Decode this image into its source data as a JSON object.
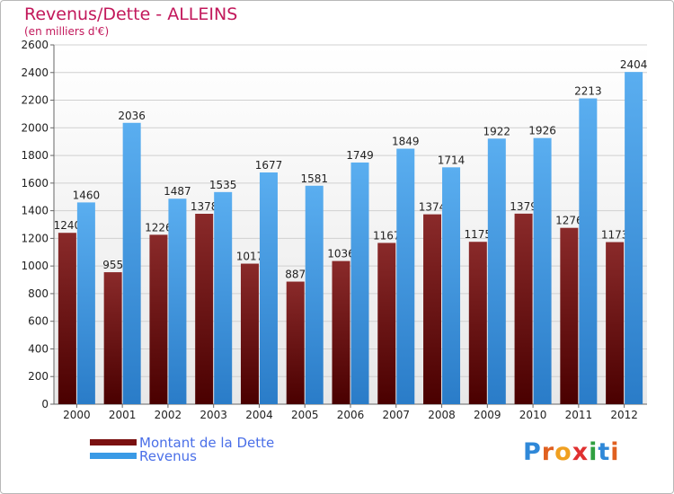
{
  "chart_data": {
    "type": "bar",
    "title": "Revenus/Dette - ALLEINS",
    "subtitle": "(en milliers d'€)",
    "categories": [
      "2000",
      "2001",
      "2002",
      "2003",
      "2004",
      "2005",
      "2006",
      "2007",
      "2008",
      "2009",
      "2010",
      "2011",
      "2012"
    ],
    "series": [
      {
        "name": "Montant de la Dette",
        "color": "#7a1010",
        "values": [
          1240,
          955,
          1226,
          1378,
          1017,
          887,
          1036,
          1167,
          1374,
          1175,
          1379,
          1276,
          1173
        ],
        "labels": [
          "1240",
          "955",
          "1226",
          "1378",
          "1017",
          "887",
          "1036",
          "1167",
          "1374",
          "1175",
          "1379",
          "1276",
          "1173"
        ]
      },
      {
        "name": "Revenus",
        "color": "#3a9ae6",
        "values": [
          1460,
          2036,
          1487,
          1535,
          1677,
          1581,
          1749,
          1849,
          1714,
          1922,
          1926,
          2213,
          2404
        ],
        "labels": [
          "1460",
          "2036",
          "1487",
          "1535",
          "1677",
          "1581",
          "1749",
          "1849",
          "1714",
          "1922",
          "1926",
          "2213",
          "2404"
        ]
      }
    ],
    "yticks": [
      0,
      200,
      400,
      600,
      800,
      1000,
      1200,
      1400,
      1600,
      1800,
      2000,
      2200,
      2400,
      2600
    ],
    "ylim": [
      0,
      2600
    ],
    "grid": true,
    "legend_position": "bottom-left"
  },
  "logo": {
    "letters": [
      {
        "char": "P",
        "color": "#2f88d8"
      },
      {
        "char": "r",
        "color": "#e06020"
      },
      {
        "char": "o",
        "color": "#f0a020"
      },
      {
        "char": "x",
        "color": "#e03030"
      },
      {
        "char": "i",
        "color": "#30a040"
      },
      {
        "char": "t",
        "color": "#2f88d8"
      },
      {
        "char": "i",
        "color": "#e06020"
      }
    ]
  }
}
